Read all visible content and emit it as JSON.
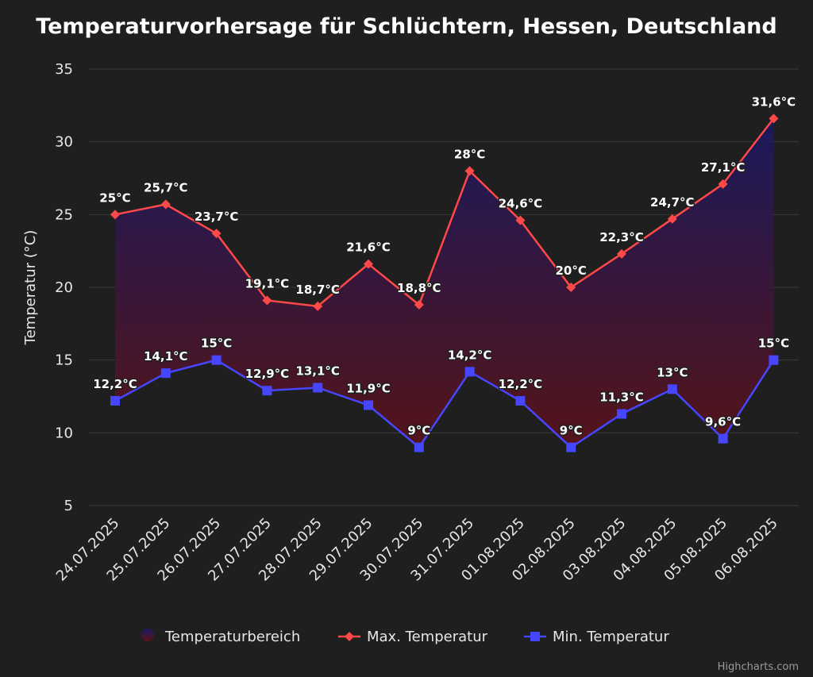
{
  "chart_data": {
    "type": "area",
    "title": "Temperaturvorhersage für Schlüchtern, Hessen, Deutschland",
    "xlabel": "",
    "ylabel": "Temperatur (°C)",
    "ylim": [
      5,
      35
    ],
    "yticks": [
      "5",
      "10",
      "15",
      "20",
      "25",
      "30",
      "35"
    ],
    "categories": [
      "24.07.2025",
      "25.07.2025",
      "26.07.2025",
      "27.07.2025",
      "28.07.2025",
      "29.07.2025",
      "30.07.2025",
      "31.07.2025",
      "01.08.2025",
      "02.08.2025",
      "03.08.2025",
      "04.08.2025",
      "05.08.2025",
      "06.08.2025"
    ],
    "grid": true,
    "legend_position": "bottom-center",
    "series": [
      {
        "name": "Temperaturbereich",
        "kind": "arearange",
        "colors": [
          "#1a1866",
          "#5e1218"
        ]
      },
      {
        "name": "Max. Temperatur",
        "kind": "line",
        "marker": "diamond",
        "color": "#ff4848",
        "values": [
          25,
          25.7,
          23.7,
          19.1,
          18.7,
          21.6,
          18.8,
          28,
          24.6,
          20,
          22.3,
          24.7,
          27.1,
          31.6
        ],
        "labels": [
          "25°C",
          "25,7°C",
          "23,7°C",
          "19,1°C",
          "18,7°C",
          "21,6°C",
          "18,8°C",
          "28°C",
          "24,6°C",
          "20°C",
          "22,3°C",
          "24,7°C",
          "27,1°C",
          "31,6°C"
        ]
      },
      {
        "name": "Min. Temperatur",
        "kind": "line",
        "marker": "square",
        "color": "#4646ff",
        "values": [
          12.2,
          14.1,
          15,
          12.9,
          13.1,
          11.9,
          9,
          14.2,
          12.2,
          9,
          11.3,
          13,
          9.6,
          15
        ],
        "labels": [
          "12,2°C",
          "14,1°C",
          "15°C",
          "12,9°C",
          "13,1°C",
          "11,9°C",
          "9°C",
          "14,2°C",
          "12,2°C",
          "9°C",
          "11,3°C",
          "13°C",
          "9,6°C",
          "15°C"
        ]
      }
    ]
  },
  "credits": "Highcharts.com"
}
